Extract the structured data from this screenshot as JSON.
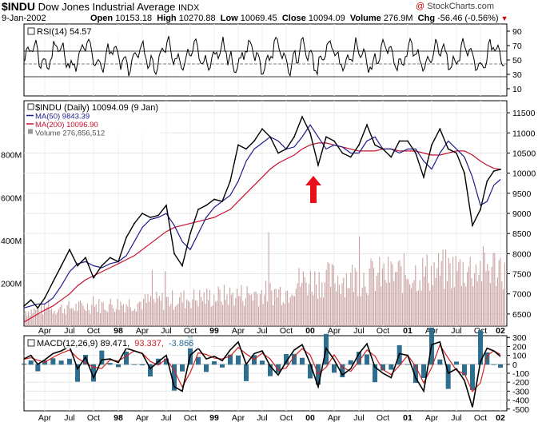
{
  "header": {
    "symbol": "$INDU",
    "name": "Dow Jones Industrial Average",
    "exchange": "INDX",
    "date": "9-Jan-2002",
    "open_label": "Open",
    "open": "10153.18",
    "high_label": "High",
    "high": "10270.88",
    "low_label": "Low",
    "low": "10069.45",
    "close_label": "Close",
    "close": "10094.09",
    "volume_label": "Volume",
    "volume": "276.9M",
    "chg_label": "Chg",
    "chg": "-56.46 (-0.56%)",
    "brand": "StockCharts.com",
    "brand_symbol": "@"
  },
  "colors": {
    "price": "#000000",
    "ma50": "#1c1c8c",
    "ma200": "#c8102e",
    "volume": "#c9a3a3",
    "macd_line": "#000000",
    "signal": "#d42020",
    "histogram": "#2e6e8e",
    "arrow": "#e8101a",
    "rsi": "#000000"
  },
  "rsi": {
    "label": "RSI(14) 54.57",
    "ticks": [
      "90",
      "70",
      "50",
      "30",
      "10"
    ]
  },
  "price": {
    "legend": [
      {
        "text": "$INDU (Daily) 10094.09 (9 Jan)",
        "color": "#000000"
      },
      {
        "text": "MA(50) 9843.39",
        "color": "#1c1c8c"
      },
      {
        "text": "MA(200) 10096.90",
        "color": "#c8102e"
      },
      {
        "text": "Volume 276,856,512",
        "color": "#555555"
      }
    ],
    "ticks": [
      "11500",
      "11000",
      "10500",
      "10000",
      "9500",
      "9000",
      "8500",
      "8000",
      "7500",
      "7000",
      "6500"
    ],
    "volume_ticks": [
      "800M",
      "600M",
      "400M",
      "200M"
    ]
  },
  "macd": {
    "label_main": "MACD(12,26,9) 89.471,",
    "label_signal": "93.337,",
    "label_hist": "-3.866",
    "ticks": [
      "300",
      "200",
      "100",
      "0",
      "-100",
      "-200",
      "-300",
      "-400",
      "-500"
    ]
  },
  "x_axis": {
    "labels": [
      "Apr",
      "Jul",
      "Oct",
      "98",
      "Apr",
      "Jul",
      "Oct",
      "99",
      "Apr",
      "Jul",
      "Oct",
      "00",
      "Apr",
      "Jul",
      "Oct",
      "01",
      "Apr",
      "Jul",
      "Oct",
      "02"
    ]
  },
  "chart_data": {
    "type": "line",
    "symbol": "$INDU",
    "period": "Daily",
    "x_ticks": [
      "Apr",
      "Jul",
      "Oct",
      "98",
      "Apr",
      "Jul",
      "Oct",
      "99",
      "Apr",
      "Jul",
      "Oct",
      "00",
      "Apr",
      "Jul",
      "Oct",
      "01",
      "Apr",
      "Jul",
      "Oct",
      "02"
    ],
    "y_ticks": [
      6500,
      7000,
      7500,
      8000,
      8500,
      9000,
      9500,
      10000,
      10500,
      11000,
      11500
    ],
    "ylim": [
      6200,
      11800
    ],
    "x": [
      "1997-01",
      "1997-02",
      "1997-03",
      "1997-04",
      "1997-05",
      "1997-06",
      "1997-07",
      "1997-08",
      "1997-09",
      "1997-10",
      "1997-11",
      "1997-12",
      "1998-01",
      "1998-02",
      "1998-03",
      "1998-04",
      "1998-05",
      "1998-06",
      "1998-07",
      "1998-08",
      "1998-09",
      "1998-10",
      "1998-11",
      "1998-12",
      "1999-01",
      "1999-02",
      "1999-03",
      "1999-04",
      "1999-05",
      "1999-06",
      "1999-07",
      "1999-08",
      "1999-09",
      "1999-10",
      "1999-11",
      "1999-12",
      "2000-01",
      "2000-02",
      "2000-03",
      "2000-04",
      "2000-05",
      "2000-06",
      "2000-07",
      "2000-08",
      "2000-09",
      "2000-10",
      "2000-11",
      "2000-12",
      "2001-01",
      "2001-02",
      "2001-03",
      "2001-04",
      "2001-05",
      "2001-06",
      "2001-07",
      "2001-08",
      "2001-09",
      "2001-10",
      "2001-11",
      "2001-12",
      "2002-01"
    ],
    "series": [
      {
        "name": "$INDU",
        "values": [
          6700,
          6850,
          6650,
          6900,
          7300,
          7700,
          8100,
          7700,
          7900,
          7400,
          7700,
          7900,
          7800,
          8400,
          8750,
          9000,
          8900,
          8950,
          9200,
          8000,
          7700,
          8500,
          9100,
          9200,
          9350,
          9300,
          9800,
          10700,
          10600,
          10800,
          11100,
          10900,
          10500,
          10600,
          10900,
          11400,
          11000,
          10200,
          10900,
          10800,
          10500,
          10400,
          10700,
          11200,
          10700,
          10600,
          10400,
          10800,
          10800,
          10500,
          9900,
          10700,
          11100,
          10600,
          10500,
          10000,
          8700,
          9100,
          9800,
          10050,
          10094
        ]
      },
      {
        "name": "MA(50)",
        "values": [
          6650,
          6700,
          6750,
          6750,
          6900,
          7200,
          7550,
          7750,
          7800,
          7700,
          7650,
          7750,
          7800,
          7950,
          8300,
          8650,
          8850,
          8900,
          9000,
          8700,
          8300,
          8100,
          8500,
          8900,
          9150,
          9300,
          9450,
          9800,
          10300,
          10600,
          10750,
          10900,
          10800,
          10600,
          10650,
          10900,
          11200,
          10900,
          10600,
          10700,
          10650,
          10500,
          10500,
          10800,
          10900,
          10600,
          10600,
          10500,
          10600,
          10600,
          10300,
          10100,
          10500,
          10800,
          10600,
          10400,
          9900,
          9200,
          9300,
          9700,
          9843
        ]
      },
      {
        "name": "MA(200)",
        "values": [
          6300,
          6400,
          6500,
          6600,
          6700,
          6850,
          7000,
          7200,
          7350,
          7450,
          7550,
          7650,
          7750,
          7850,
          7950,
          8100,
          8250,
          8400,
          8550,
          8650,
          8700,
          8750,
          8800,
          8850,
          8900,
          9000,
          9100,
          9300,
          9500,
          9700,
          9900,
          10100,
          10250,
          10350,
          10450,
          10600,
          10700,
          10750,
          10750,
          10700,
          10650,
          10600,
          10550,
          10550,
          10550,
          10600,
          10600,
          10550,
          10550,
          10550,
          10500,
          10450,
          10450,
          10500,
          10550,
          10550,
          10450,
          10300,
          10200,
          10120,
          10097
        ]
      }
    ],
    "volume_ylim_M": [
      0,
      1000
    ],
    "volume_ticks_M": [
      200,
      400,
      600,
      800
    ],
    "annotation": "red up arrow near 2000-03",
    "macd": {
      "label": "MACD(12,26,9)",
      "macd": 89.471,
      "signal": 93.337,
      "histogram": -3.866,
      "ylim": [
        -520,
        320
      ],
      "ticks": [
        300,
        200,
        100,
        0,
        -100,
        -200,
        -300,
        -400,
        -500
      ],
      "macd_values": [
        60,
        100,
        0,
        50,
        120,
        150,
        200,
        -50,
        80,
        -150,
        50,
        60,
        20,
        180,
        150,
        120,
        -50,
        30,
        100,
        -250,
        -300,
        100,
        180,
        60,
        90,
        40,
        160,
        250,
        0,
        120,
        150,
        -20,
        -120,
        30,
        160,
        220,
        10,
        -250,
        180,
        50,
        -120,
        -50,
        120,
        230,
        -30,
        -100,
        -150,
        120,
        100,
        -150,
        -300,
        220,
        250,
        -100,
        -50,
        -180,
        -480,
        30,
        180,
        150,
        89
      ]
    },
    "rsi": {
      "label": "RSI(14)",
      "value": 54.57,
      "ylim": [
        0,
        100
      ],
      "ticks": [
        90,
        70,
        50,
        30,
        10
      ],
      "reference_lines": [
        30,
        50,
        70
      ]
    }
  }
}
